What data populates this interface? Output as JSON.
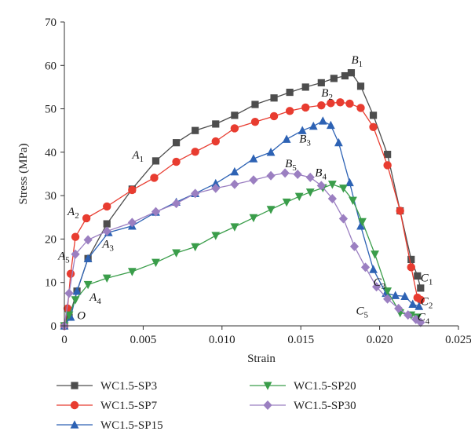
{
  "chart_data": {
    "type": "line",
    "xlabel": "Strain",
    "ylabel": "Stress (MPa)",
    "xlim": [
      0,
      0.025
    ],
    "ylim": [
      0,
      70
    ],
    "x_ticks": [
      "0",
      "0.005",
      "0.010",
      "0.015",
      "0.020",
      "0.025"
    ],
    "y_ticks": [
      "0",
      "10",
      "20",
      "30",
      "40",
      "50",
      "60",
      "70"
    ],
    "legend_position": "bottom",
    "series": [
      {
        "name": "WC1.5-SP3",
        "color": "#4d4d4d",
        "marker": "square",
        "x": [
          0,
          0.0003,
          0.0008,
          0.0015,
          0.0027,
          0.0043,
          0.0058,
          0.0071,
          0.0083,
          0.0096,
          0.0108,
          0.0121,
          0.0133,
          0.0143,
          0.0153,
          0.0163,
          0.0171,
          0.0178,
          0.0182,
          0.0188,
          0.0196,
          0.0205,
          0.0213,
          0.022,
          0.0224,
          0.0226
        ],
        "y": [
          0,
          2,
          8,
          15.5,
          23.5,
          31.5,
          38,
          42.2,
          45,
          46.5,
          48.5,
          51,
          52.5,
          53.8,
          55,
          56,
          57,
          57.6,
          58.3,
          55.2,
          48.5,
          39.5,
          26.5,
          15.3,
          11.5,
          8.7
        ]
      },
      {
        "name": "WC1.5-SP7",
        "color": "#e83c30",
        "marker": "circle",
        "x": [
          0,
          0.0002,
          0.0004,
          0.0007,
          0.0014,
          0.0027,
          0.0043,
          0.0057,
          0.0071,
          0.0083,
          0.0096,
          0.0108,
          0.0121,
          0.0133,
          0.0143,
          0.0153,
          0.0163,
          0.0169,
          0.0175,
          0.0181,
          0.0188,
          0.0196,
          0.0205,
          0.0213,
          0.022,
          0.0224,
          0.0226
        ],
        "y": [
          0,
          4,
          12,
          20.5,
          24.8,
          27.5,
          31.3,
          34.1,
          37.8,
          40.1,
          42.5,
          45.5,
          47,
          48.3,
          49.5,
          50.3,
          50.8,
          51.3,
          51.5,
          51.2,
          50.2,
          45.8,
          37,
          26.5,
          13.5,
          6.5,
          6
        ]
      },
      {
        "name": "WC1.5-SP15",
        "color": "#2d62b4",
        "marker": "triangle-up",
        "x": [
          0,
          0.0004,
          0.0008,
          0.0015,
          0.0028,
          0.0043,
          0.0058,
          0.0071,
          0.0083,
          0.0096,
          0.0108,
          0.012,
          0.0131,
          0.0141,
          0.0151,
          0.0158,
          0.0164,
          0.0169,
          0.0174,
          0.0181,
          0.0188,
          0.0196,
          0.0204,
          0.021,
          0.0216,
          0.0221,
          0.0225
        ],
        "y": [
          0,
          2,
          8,
          15.5,
          21.5,
          23,
          26.2,
          28.5,
          30.5,
          32.8,
          35.5,
          38.5,
          40,
          43,
          45,
          46,
          47.2,
          46.2,
          42.2,
          33,
          23,
          13,
          7.5,
          7,
          6.8,
          5,
          4.5
        ]
      },
      {
        "name": "WC1.5-SP20",
        "color": "#3a9d4a",
        "marker": "triangle-down",
        "x": [
          0,
          0.0003,
          0.0007,
          0.0015,
          0.0027,
          0.0043,
          0.0058,
          0.0071,
          0.0083,
          0.0096,
          0.0108,
          0.012,
          0.0131,
          0.0141,
          0.0149,
          0.0156,
          0.0164,
          0.017,
          0.0177,
          0.0183,
          0.0189,
          0.0197,
          0.0205,
          0.0213,
          0.022,
          0.0224
        ],
        "y": [
          0,
          2.5,
          6,
          9.5,
          11,
          12.5,
          14.6,
          16.8,
          18.2,
          20.8,
          22.8,
          24.9,
          26.8,
          28.5,
          29.8,
          30.8,
          31.8,
          32.6,
          31.7,
          28.9,
          24,
          16.5,
          8,
          3,
          2.5,
          2
        ]
      },
      {
        "name": "WC1.5-SP30",
        "color": "#9b7fc1",
        "marker": "diamond",
        "x": [
          0,
          0.0003,
          0.0007,
          0.0015,
          0.0027,
          0.0043,
          0.0058,
          0.0071,
          0.0083,
          0.0096,
          0.0108,
          0.012,
          0.0131,
          0.014,
          0.0148,
          0.0156,
          0.0163,
          0.017,
          0.0177,
          0.0184,
          0.0191,
          0.0198,
          0.0205,
          0.0212,
          0.0218,
          0.0223,
          0.0226
        ],
        "y": [
          0,
          7.5,
          16.5,
          19.8,
          21.8,
          23.8,
          26.3,
          28.2,
          30.5,
          31.7,
          32.6,
          33.6,
          34.6,
          35.2,
          34.9,
          34.2,
          32.3,
          29.3,
          24.7,
          18.3,
          13.5,
          9,
          6.2,
          4,
          2.5,
          1.5,
          0.8
        ]
      }
    ],
    "annotations": [
      {
        "letter": "O",
        "sub": "",
        "x": 0.0008,
        "y": 1.5
      },
      {
        "letter": "A",
        "sub": "1",
        "x": 0.0043,
        "y": 38.5
      },
      {
        "letter": "A",
        "sub": "2",
        "x": 0.0002,
        "y": 25.5
      },
      {
        "letter": "A",
        "sub": "3",
        "x": 0.0024,
        "y": 18
      },
      {
        "letter": "A",
        "sub": "4",
        "x": 0.0016,
        "y": 5.8
      },
      {
        "letter": "A",
        "sub": "5",
        "x": -0.0004,
        "y": 15.3
      },
      {
        "letter": "B",
        "sub": "1",
        "x": 0.0182,
        "y": 60.4
      },
      {
        "letter": "B",
        "sub": "2",
        "x": 0.0163,
        "y": 52.8
      },
      {
        "letter": "B",
        "sub": "3",
        "x": 0.0149,
        "y": 42.2
      },
      {
        "letter": "B",
        "sub": "4",
        "x": 0.0159,
        "y": 34.5
      },
      {
        "letter": "B",
        "sub": "5",
        "x": 0.014,
        "y": 36.5
      },
      {
        "letter": "C",
        "sub": "1",
        "x": 0.0226,
        "y": 10.2
      },
      {
        "letter": "C",
        "sub": "2",
        "x": 0.0226,
        "y": 4.8
      },
      {
        "letter": "C",
        "sub": "3",
        "x": 0.0196,
        "y": 9.2
      },
      {
        "letter": "C",
        "sub": "4",
        "x": 0.0224,
        "y": 1.2
      },
      {
        "letter": "C",
        "sub": "5",
        "x": 0.0185,
        "y": 2.6
      }
    ]
  }
}
